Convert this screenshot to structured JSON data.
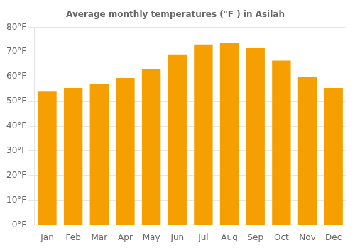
{
  "chart_data": {
    "type": "bar",
    "title": "Average monthly temperatures (°F ) in Asilah",
    "categories": [
      "Jan",
      "Feb",
      "Mar",
      "Apr",
      "May",
      "Jun",
      "Jul",
      "Aug",
      "Sep",
      "Oct",
      "Nov",
      "Dec"
    ],
    "values": [
      54,
      55.5,
      57,
      59.5,
      63,
      69,
      73,
      73.5,
      71.5,
      66.5,
      60,
      55.5
    ],
    "color": "#F5A000",
    "ylim": [
      0,
      80
    ],
    "yticks": [
      {
        "value": 0,
        "label": "0°F"
      },
      {
        "value": 10,
        "label": "10°F"
      },
      {
        "value": 20,
        "label": "20°F"
      },
      {
        "value": 30,
        "label": "30°F"
      },
      {
        "value": 40,
        "label": "40°F"
      },
      {
        "value": 50,
        "label": "50°F"
      },
      {
        "value": 60,
        "label": "60°F"
      },
      {
        "value": 70,
        "label": "70°F"
      },
      {
        "value": 80,
        "label": "80°F"
      }
    ],
    "grid": true
  }
}
